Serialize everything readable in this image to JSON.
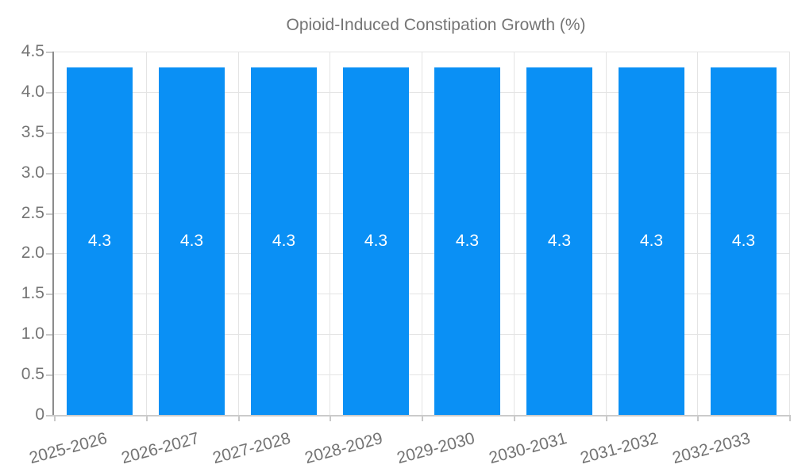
{
  "legend": {
    "label": "Opioid-Induced Constipation Growth (%)"
  },
  "chart_data": {
    "type": "bar",
    "title": "Opioid-Induced Constipation Growth (%)",
    "categories": [
      "2025-2026",
      "2026-2027",
      "2027-2028",
      "2028-2029",
      "2029-2030",
      "2030-2031",
      "2031-2032",
      "2032-2033"
    ],
    "values": [
      4.3,
      4.3,
      4.3,
      4.3,
      4.3,
      4.3,
      4.3,
      4.3
    ],
    "bar_value_labels": [
      "4.3",
      "4.3",
      "4.3",
      "4.3",
      "4.3",
      "4.3",
      "4.3",
      "4.3"
    ],
    "xlabel": "",
    "ylabel": "",
    "ylim": [
      0,
      4.5
    ],
    "ytick_step": 0.5,
    "ytick_labels": [
      "0",
      "0.5",
      "1.0",
      "1.5",
      "2.0",
      "2.5",
      "3.0",
      "3.5",
      "4.0",
      "4.5"
    ],
    "grid": true,
    "legend_position": "top-center",
    "colors": {
      "bar": "#0a90f5",
      "bar_label": "#ffffff",
      "axis_text": "#757575",
      "grid_line": "#e4e4e4",
      "y_axis_line": "#8c8c8c",
      "x_axis_line": "#cbcbcb",
      "tick": "#c9c9c9"
    }
  }
}
